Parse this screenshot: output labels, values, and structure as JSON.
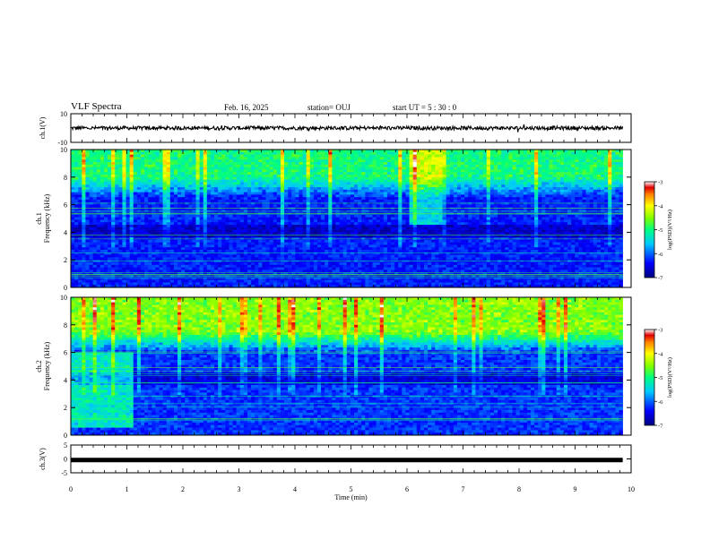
{
  "header": {
    "title": "VLF Spectra",
    "date": "Feb. 16, 2025",
    "station": "station= OUJ",
    "start_ut": "start UT =  5 : 30 : 0"
  },
  "chart_data": [
    {
      "type": "line",
      "panel": "ch1-waveform",
      "ylabel": "ch.1(V)",
      "ylim": [
        -10,
        10
      ],
      "yticks": [
        "10",
        "-10"
      ],
      "x_range": [
        0,
        9.85
      ],
      "series": [
        {
          "baseline": 0,
          "amplitude_approx": 1.3
        }
      ]
    },
    {
      "type": "heatmap",
      "panel": "ch1-spectrogram",
      "ylabel": "ch.1\nFrequency (kHz)",
      "ylim": [
        0,
        10
      ],
      "yticks": [
        "0",
        "2",
        "4",
        "6",
        "8",
        "10"
      ],
      "x_range": [
        0,
        9.85
      ],
      "colorbar": {
        "label": "log(PSD)(V²/Hz)",
        "range": [
          -7,
          -3
        ],
        "ticks": [
          "-3",
          "-4",
          "-5",
          "-6",
          "-7"
        ]
      },
      "features": {
        "background_level": -6.3,
        "upper_band_level": -5.0,
        "upper_band_start_khz": 6.5,
        "intense_segment_min": [
          6.0,
          6.6
        ]
      }
    },
    {
      "type": "heatmap",
      "panel": "ch2-spectrogram",
      "ylabel": "ch.2\nFrequency (kHz)",
      "ylim": [
        0,
        10
      ],
      "yticks": [
        "0",
        "2",
        "4",
        "6",
        "8",
        "10"
      ],
      "x_range": [
        0,
        9.85
      ],
      "colorbar": {
        "label": "log(PSD)(V²/Hz)",
        "range": [
          -7,
          -3
        ],
        "ticks": [
          "-3",
          "-4",
          "-5",
          "-6",
          "-7"
        ]
      },
      "features": {
        "background_level": -6.2,
        "upper_band_level": -4.5,
        "upper_band_start_khz": 6.0,
        "low_freq_burst_min": [
          0.0,
          1.1
        ]
      }
    },
    {
      "type": "line",
      "panel": "ch3-waveform",
      "ylabel": "ch.3(V)",
      "ylim": [
        -5,
        5
      ],
      "yticks": [
        "5",
        "0",
        "-5"
      ],
      "x_range": [
        0,
        9.85
      ],
      "series": [
        {
          "baseline": -0.4,
          "amplitude_approx": 0.1
        }
      ]
    }
  ],
  "x_axis": {
    "xlabel": "Time (min)",
    "xlim": [
      0,
      10
    ],
    "ticks": [
      "0",
      "1",
      "2",
      "3",
      "4",
      "5",
      "6",
      "7",
      "8",
      "9",
      "10"
    ]
  }
}
